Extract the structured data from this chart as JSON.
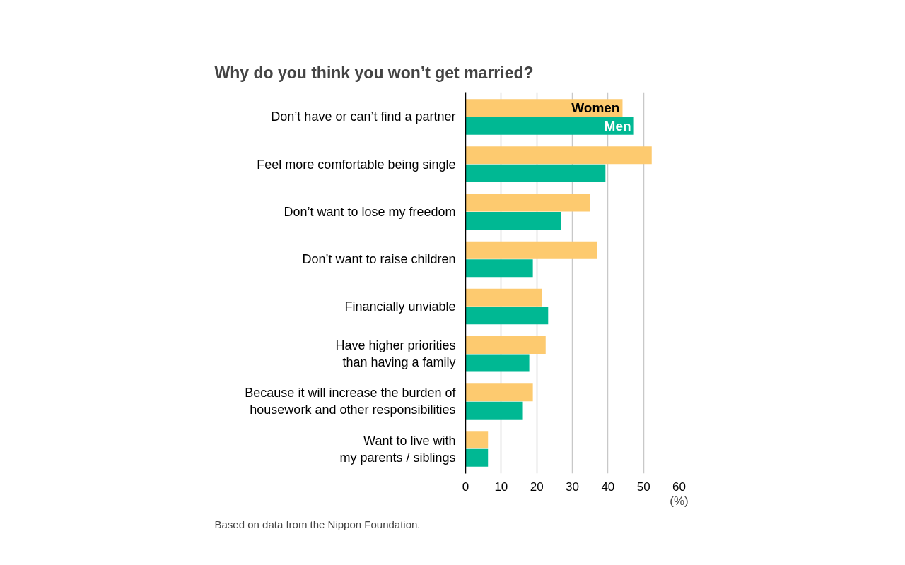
{
  "chart_data": {
    "type": "bar",
    "orientation": "horizontal",
    "title": "Why do you think you won’t get married?",
    "categories": [
      "Don’t have or can’t find a partner",
      "Feel more comfortable being single",
      "Don’t want to lose my freedom",
      "Don’t want to raise children",
      "Financially unviable",
      "Have higher priorities\nthan having a family",
      "Because it will increase the burden of\nhousework and other responsibilities",
      "Want to live with\nmy parents / siblings"
    ],
    "series": [
      {
        "name": "Women",
        "color": "#fdca6f",
        "values": [
          44.1,
          52.3,
          35.0,
          36.9,
          21.5,
          22.5,
          18.9,
          6.3
        ]
      },
      {
        "name": "Men",
        "color": "#00b893",
        "values": [
          47.3,
          39.3,
          26.8,
          18.9,
          23.2,
          17.9,
          16.1,
          6.3
        ]
      }
    ],
    "xlim": [
      0,
      60
    ],
    "xticks": [
      0,
      10,
      20,
      30,
      40,
      50,
      60
    ],
    "xlabel": "(%)",
    "grid": "x",
    "legend": false,
    "annotations": [
      "Based on data from the Nippon Foundation."
    ]
  }
}
